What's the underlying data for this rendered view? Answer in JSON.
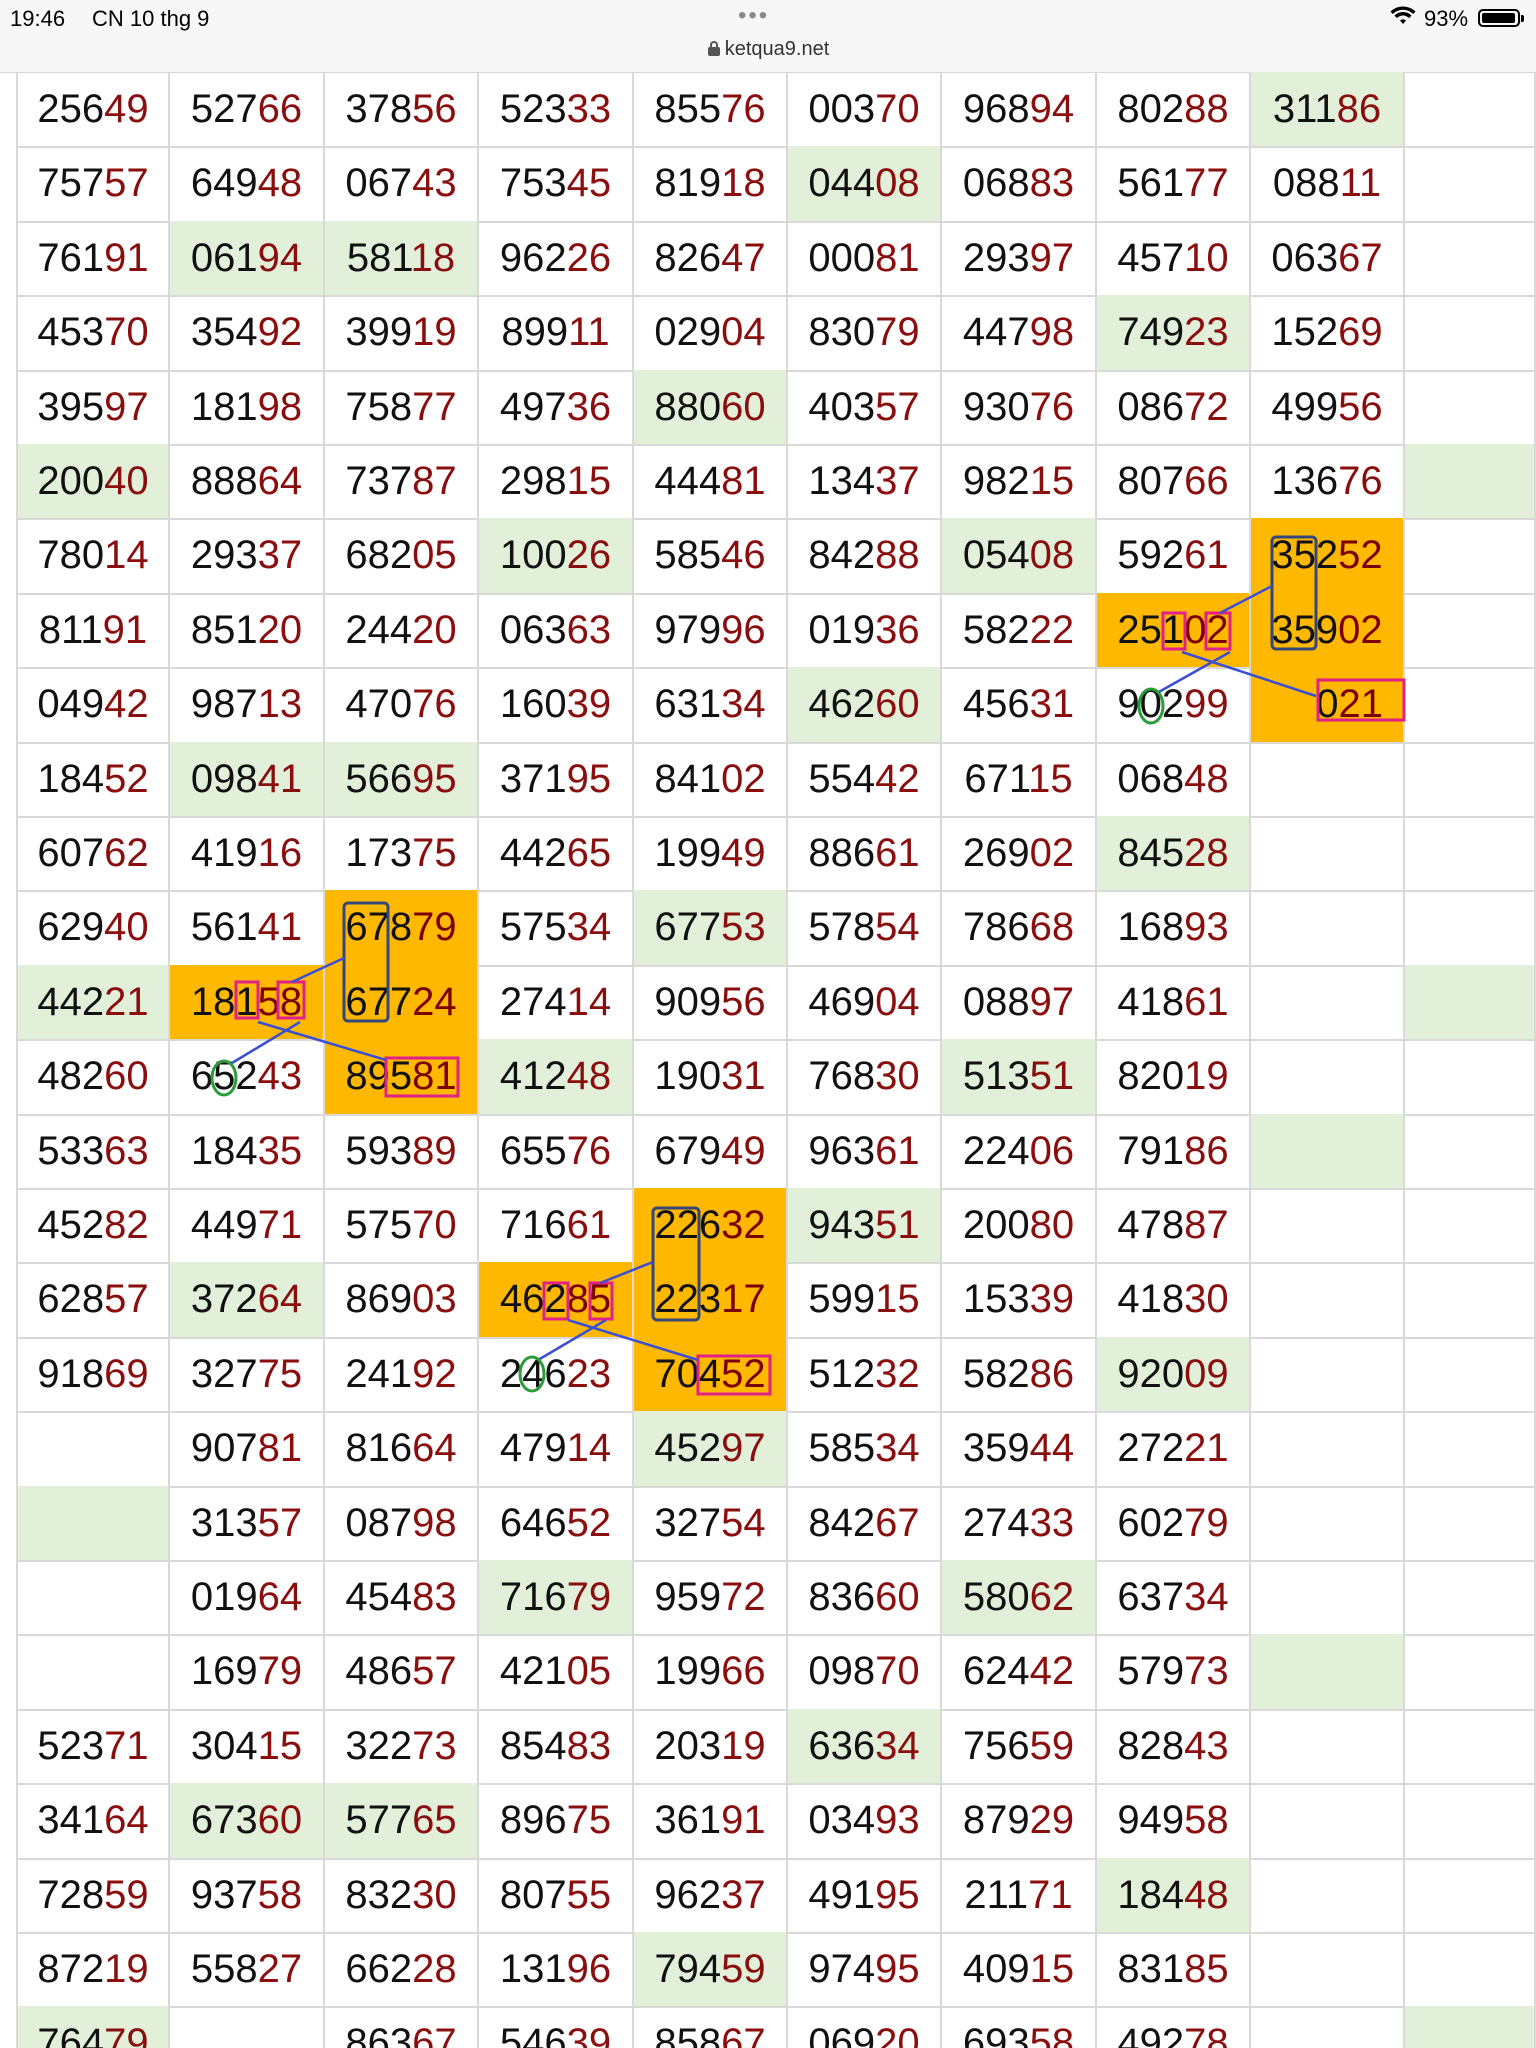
{
  "status_bar": {
    "time": "19:46",
    "date": "CN 10 thg 9",
    "url": "ketqua9.net",
    "battery": "93%",
    "wifi_icon": "wifi-icon",
    "lock_icon": "lock-icon"
  },
  "colors": {
    "highlight_green": "#e2f0da",
    "highlight_orange": "#ffb800",
    "digit_tail": "#8b0e0e",
    "marker_box": "#e0218a",
    "link_line": "#3a4fd6",
    "circle": "#2a9d3a"
  },
  "results": [
    [
      {
        "v": "25649"
      },
      {
        "v": "52766"
      },
      {
        "v": "37856"
      },
      {
        "v": "52333"
      },
      {
        "v": "85576"
      },
      {
        "v": "00370"
      },
      {
        "v": "96894"
      },
      {
        "v": "80288"
      },
      {
        "v": "31186",
        "h": "g"
      },
      {
        "v": ""
      }
    ],
    [
      {
        "v": "75757"
      },
      {
        "v": "64948"
      },
      {
        "v": "06743"
      },
      {
        "v": "75345"
      },
      {
        "v": "81918"
      },
      {
        "v": "04408",
        "h": "g"
      },
      {
        "v": "06883"
      },
      {
        "v": "56177"
      },
      {
        "v": "08811"
      },
      {
        "v": ""
      }
    ],
    [
      {
        "v": "76191"
      },
      {
        "v": "06194",
        "h": "g"
      },
      {
        "v": "58118",
        "h": "g"
      },
      {
        "v": "96226"
      },
      {
        "v": "82647"
      },
      {
        "v": "00081"
      },
      {
        "v": "29397"
      },
      {
        "v": "45710"
      },
      {
        "v": "06367"
      },
      {
        "v": ""
      }
    ],
    [
      {
        "v": "45370"
      },
      {
        "v": "35492"
      },
      {
        "v": "39919"
      },
      {
        "v": "89911"
      },
      {
        "v": "02904"
      },
      {
        "v": "83079"
      },
      {
        "v": "44798"
      },
      {
        "v": "74923",
        "h": "g"
      },
      {
        "v": "15269"
      },
      {
        "v": ""
      }
    ],
    [
      {
        "v": "39597"
      },
      {
        "v": "18198"
      },
      {
        "v": "75877"
      },
      {
        "v": "49736"
      },
      {
        "v": "88060",
        "h": "g"
      },
      {
        "v": "40357"
      },
      {
        "v": "93076"
      },
      {
        "v": "08672"
      },
      {
        "v": "49956"
      },
      {
        "v": ""
      }
    ],
    [
      {
        "v": "20040",
        "h": "g"
      },
      {
        "v": "88864"
      },
      {
        "v": "73787"
      },
      {
        "v": "29815"
      },
      {
        "v": "44481"
      },
      {
        "v": "13437"
      },
      {
        "v": "98215"
      },
      {
        "v": "80766"
      },
      {
        "v": "13676"
      },
      {
        "v": "",
        "h": "g"
      }
    ],
    [
      {
        "v": "78014"
      },
      {
        "v": "29337"
      },
      {
        "v": "68205"
      },
      {
        "v": "10026",
        "h": "g"
      },
      {
        "v": "58546"
      },
      {
        "v": "84288"
      },
      {
        "v": "05408",
        "h": "g"
      },
      {
        "v": "59261"
      },
      {
        "v": "35252",
        "h": "o"
      },
      {
        "v": ""
      }
    ],
    [
      {
        "v": "81191"
      },
      {
        "v": "85120"
      },
      {
        "v": "24420"
      },
      {
        "v": "06363"
      },
      {
        "v": "97996"
      },
      {
        "v": "01936"
      },
      {
        "v": "58222"
      },
      {
        "v": "25102",
        "h": "o"
      },
      {
        "v": "35902",
        "h": "o"
      },
      {
        "v": ""
      }
    ],
    [
      {
        "v": "04942"
      },
      {
        "v": "98713"
      },
      {
        "v": "47076"
      },
      {
        "v": "16039"
      },
      {
        "v": "63134"
      },
      {
        "v": "46260",
        "h": "g"
      },
      {
        "v": "45631"
      },
      {
        "v": "90299"
      },
      {
        "v": "021",
        "h": "o",
        "a": "right"
      },
      {
        "v": ""
      }
    ],
    [
      {
        "v": "18452"
      },
      {
        "v": "09841",
        "h": "g"
      },
      {
        "v": "56695",
        "h": "g"
      },
      {
        "v": "37195"
      },
      {
        "v": "84102"
      },
      {
        "v": "55442"
      },
      {
        "v": "67115"
      },
      {
        "v": "06848"
      },
      {
        "v": ""
      },
      {
        "v": ""
      }
    ],
    [
      {
        "v": "60762"
      },
      {
        "v": "41916"
      },
      {
        "v": "17375"
      },
      {
        "v": "44265"
      },
      {
        "v": "19949"
      },
      {
        "v": "88661"
      },
      {
        "v": "26902"
      },
      {
        "v": "84528",
        "h": "g"
      },
      {
        "v": ""
      },
      {
        "v": ""
      }
    ],
    [
      {
        "v": "62940"
      },
      {
        "v": "56141"
      },
      {
        "v": "67879",
        "h": "o"
      },
      {
        "v": "57534"
      },
      {
        "v": "67753",
        "h": "g"
      },
      {
        "v": "57854"
      },
      {
        "v": "78668"
      },
      {
        "v": "16893"
      },
      {
        "v": ""
      },
      {
        "v": ""
      }
    ],
    [
      {
        "v": "44221",
        "h": "g"
      },
      {
        "v": "18158",
        "h": "o"
      },
      {
        "v": "67724",
        "h": "o"
      },
      {
        "v": "27414"
      },
      {
        "v": "90956"
      },
      {
        "v": "46904"
      },
      {
        "v": "08897"
      },
      {
        "v": "41861"
      },
      {
        "v": ""
      },
      {
        "v": "",
        "h": "g"
      }
    ],
    [
      {
        "v": "48260"
      },
      {
        "v": "65243"
      },
      {
        "v": "89581",
        "h": "o"
      },
      {
        "v": "41248",
        "h": "g"
      },
      {
        "v": "19031"
      },
      {
        "v": "76830"
      },
      {
        "v": "51351",
        "h": "g"
      },
      {
        "v": "82019"
      },
      {
        "v": ""
      },
      {
        "v": ""
      }
    ],
    [
      {
        "v": "53363"
      },
      {
        "v": "18435"
      },
      {
        "v": "59389"
      },
      {
        "v": "65576"
      },
      {
        "v": "67949"
      },
      {
        "v": "96361"
      },
      {
        "v": "22406"
      },
      {
        "v": "79186"
      },
      {
        "v": "",
        "h": "g"
      },
      {
        "v": ""
      }
    ],
    [
      {
        "v": "45282"
      },
      {
        "v": "44971"
      },
      {
        "v": "57570"
      },
      {
        "v": "71661"
      },
      {
        "v": "22632",
        "h": "o"
      },
      {
        "v": "94351",
        "h": "g"
      },
      {
        "v": "20080"
      },
      {
        "v": "47887"
      },
      {
        "v": ""
      },
      {
        "v": ""
      }
    ],
    [
      {
        "v": "62857"
      },
      {
        "v": "37264",
        "h": "g"
      },
      {
        "v": "86903"
      },
      {
        "v": "46285",
        "h": "o"
      },
      {
        "v": "22317",
        "h": "o"
      },
      {
        "v": "59915"
      },
      {
        "v": "15339"
      },
      {
        "v": "41830"
      },
      {
        "v": ""
      },
      {
        "v": ""
      }
    ],
    [
      {
        "v": "91869"
      },
      {
        "v": "32775"
      },
      {
        "v": "24192"
      },
      {
        "v": "24623"
      },
      {
        "v": "70452",
        "h": "o"
      },
      {
        "v": "51232"
      },
      {
        "v": "58286"
      },
      {
        "v": "92009",
        "h": "g"
      },
      {
        "v": ""
      },
      {
        "v": ""
      }
    ],
    [
      {
        "v": ""
      },
      {
        "v": "90781"
      },
      {
        "v": "81664"
      },
      {
        "v": "47914"
      },
      {
        "v": "45297",
        "h": "g"
      },
      {
        "v": "58534"
      },
      {
        "v": "35944"
      },
      {
        "v": "27221"
      },
      {
        "v": ""
      },
      {
        "v": ""
      }
    ],
    [
      {
        "v": "",
        "h": "g"
      },
      {
        "v": "31357"
      },
      {
        "v": "08798"
      },
      {
        "v": "64652"
      },
      {
        "v": "32754"
      },
      {
        "v": "84267"
      },
      {
        "v": "27433"
      },
      {
        "v": "60279"
      },
      {
        "v": ""
      },
      {
        "v": ""
      }
    ],
    [
      {
        "v": ""
      },
      {
        "v": "01964"
      },
      {
        "v": "45483"
      },
      {
        "v": "71679",
        "h": "g"
      },
      {
        "v": "95972"
      },
      {
        "v": "83660"
      },
      {
        "v": "58062",
        "h": "g"
      },
      {
        "v": "63734"
      },
      {
        "v": ""
      },
      {
        "v": ""
      }
    ],
    [
      {
        "v": ""
      },
      {
        "v": "16979"
      },
      {
        "v": "48657"
      },
      {
        "v": "42105"
      },
      {
        "v": "19966"
      },
      {
        "v": "09870"
      },
      {
        "v": "62442"
      },
      {
        "v": "57973"
      },
      {
        "v": "",
        "h": "g"
      },
      {
        "v": ""
      }
    ],
    [
      {
        "v": "52371"
      },
      {
        "v": "30415"
      },
      {
        "v": "32273"
      },
      {
        "v": "85483"
      },
      {
        "v": "20319"
      },
      {
        "v": "63634",
        "h": "g"
      },
      {
        "v": "75659"
      },
      {
        "v": "82843"
      },
      {
        "v": ""
      },
      {
        "v": ""
      }
    ],
    [
      {
        "v": "34164"
      },
      {
        "v": "67360",
        "h": "g"
      },
      {
        "v": "57765",
        "h": "g"
      },
      {
        "v": "89675"
      },
      {
        "v": "36191"
      },
      {
        "v": "03493"
      },
      {
        "v": "87929"
      },
      {
        "v": "94958"
      },
      {
        "v": ""
      },
      {
        "v": ""
      }
    ],
    [
      {
        "v": "72859"
      },
      {
        "v": "93758"
      },
      {
        "v": "83230"
      },
      {
        "v": "80755"
      },
      {
        "v": "96237"
      },
      {
        "v": "49195"
      },
      {
        "v": "21171"
      },
      {
        "v": "18448",
        "h": "g"
      },
      {
        "v": ""
      },
      {
        "v": ""
      }
    ],
    [
      {
        "v": "87219"
      },
      {
        "v": "55827"
      },
      {
        "v": "66228"
      },
      {
        "v": "13196"
      },
      {
        "v": "79459",
        "h": "g"
      },
      {
        "v": "97495"
      },
      {
        "v": "40915"
      },
      {
        "v": "83185"
      },
      {
        "v": ""
      },
      {
        "v": ""
      }
    ],
    [
      {
        "v": "76479",
        "h": "g"
      },
      {
        "v": ""
      },
      {
        "v": "86367"
      },
      {
        "v": "54639"
      },
      {
        "v": "85867"
      },
      {
        "v": "06920"
      },
      {
        "v": "69358"
      },
      {
        "v": "49278"
      },
      {
        "v": ""
      },
      {
        "v": "",
        "h": "g"
      }
    ]
  ]
}
